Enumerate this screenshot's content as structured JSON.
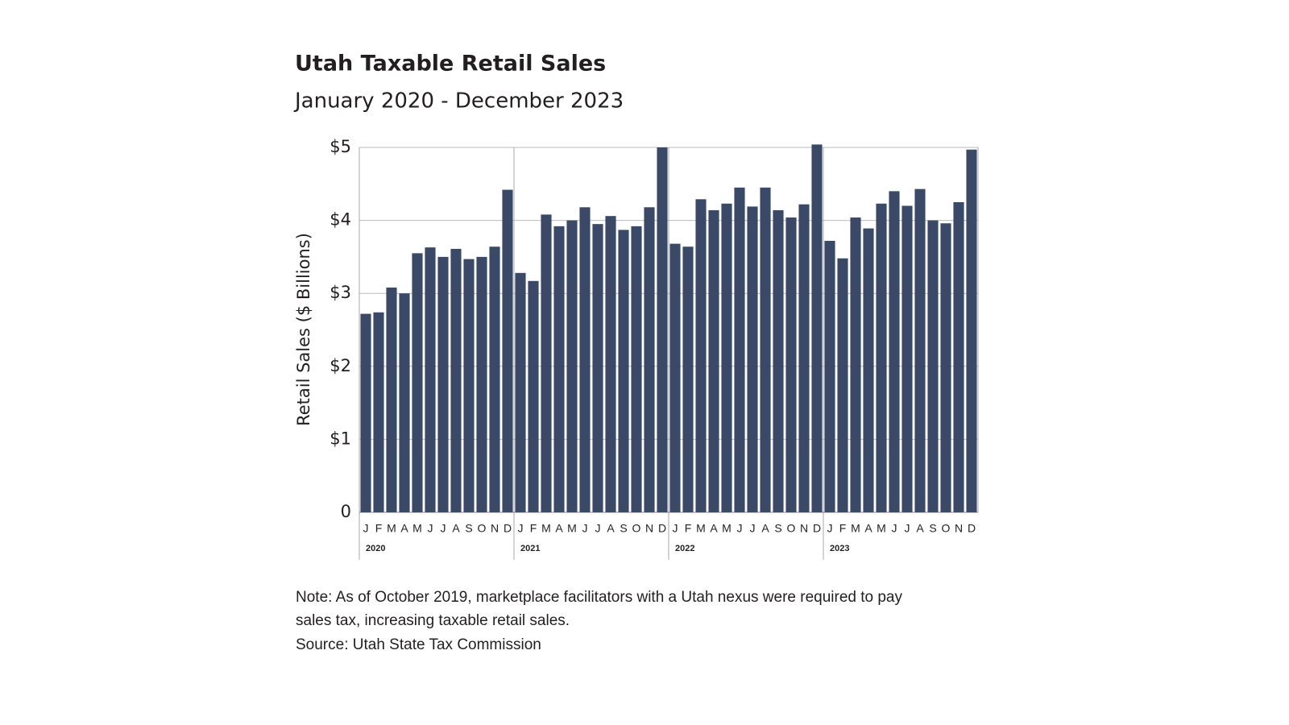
{
  "chart_data": {
    "type": "bar",
    "title": "Utah Taxable Retail Sales",
    "subtitle": "January 2020 - December 2023",
    "y_label": "Retail Sales ($ Billions)",
    "categories": [
      "J",
      "F",
      "M",
      "A",
      "M",
      "J",
      "J",
      "A",
      "S",
      "O",
      "N",
      "D",
      "J",
      "F",
      "M",
      "A",
      "M",
      "J",
      "J",
      "A",
      "S",
      "O",
      "N",
      "D",
      "J",
      "F",
      "M",
      "A",
      "M",
      "J",
      "J",
      "A",
      "S",
      "O",
      "N",
      "D",
      "J",
      "F",
      "M",
      "A",
      "M",
      "J",
      "J",
      "A",
      "S",
      "O",
      "N",
      "D"
    ],
    "groups": [
      "2020",
      "2021",
      "2022",
      "2023"
    ],
    "values": [
      2.72,
      2.74,
      3.08,
      3.0,
      3.55,
      3.63,
      3.5,
      3.61,
      3.47,
      3.5,
      3.64,
      4.42,
      3.28,
      3.17,
      4.08,
      3.92,
      4.0,
      4.18,
      3.95,
      4.06,
      3.87,
      3.92,
      4.18,
      5.0,
      3.68,
      3.64,
      4.29,
      4.14,
      4.23,
      4.45,
      4.19,
      4.45,
      4.14,
      4.04,
      4.22,
      5.04,
      3.72,
      3.48,
      4.04,
      3.89,
      4.23,
      4.4,
      4.2,
      4.43,
      4.0,
      3.96,
      4.25,
      4.97
    ],
    "color": "#3a4a66",
    "ylim": [
      0,
      5
    ],
    "yticks": [
      0,
      {
        "value": 1,
        "label": "$1"
      },
      {
        "value": 2,
        "label": "$2"
      },
      {
        "value": 3,
        "label": "$3"
      },
      {
        "value": 4,
        "label": "$4"
      },
      {
        "value": 5,
        "label": "$5"
      }
    ],
    "grid": true,
    "note": [
      "Note: As of October 2019, marketplace facilitators with a Utah nexus were required to pay",
      "sales tax, increasing taxable retail sales."
    ],
    "source": "Source: Utah State Tax Commission"
  }
}
